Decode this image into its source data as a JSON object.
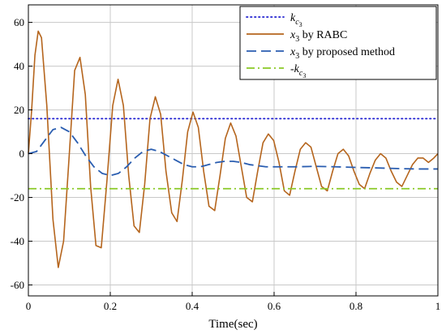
{
  "chart_data": {
    "type": "line",
    "title": "",
    "xlabel": "Time(sec)",
    "ylabel": "",
    "xlim": [
      0,
      1
    ],
    "ylim": [
      -65,
      68
    ],
    "grid": true,
    "legend_position": "top-right",
    "x_ticks": [
      0,
      0.2,
      0.4,
      0.6,
      0.8,
      1
    ],
    "x_tick_labels": [
      "0",
      "0.2",
      "0.4",
      "0.6",
      "0.8",
      "1"
    ],
    "y_ticks": [
      -60,
      -40,
      -20,
      0,
      20,
      40,
      60
    ],
    "y_tick_labels": [
      "-60",
      "-40",
      "-20",
      "0",
      "20",
      "40",
      "60"
    ],
    "series": [
      {
        "name": "k_c3",
        "legend_label": "k",
        "legend_subscript": "c",
        "legend_subsubscript": "3",
        "color": "#2020d0",
        "style": "dotted",
        "x": [
          0,
          1
        ],
        "y": [
          16,
          16
        ]
      },
      {
        "name": "x3 by RABC",
        "legend_label": "x",
        "legend_subscript": "3",
        "legend_suffix": " by RABC",
        "color": "#b5651d",
        "style": "solid",
        "x": [
          0,
          0.008,
          0.016,
          0.024,
          0.032,
          0.045,
          0.06,
          0.073,
          0.086,
          0.1,
          0.113,
          0.126,
          0.139,
          0.152,
          0.165,
          0.178,
          0.192,
          0.206,
          0.219,
          0.232,
          0.245,
          0.258,
          0.271,
          0.284,
          0.297,
          0.31,
          0.323,
          0.336,
          0.35,
          0.363,
          0.376,
          0.389,
          0.402,
          0.415,
          0.428,
          0.441,
          0.455,
          0.468,
          0.481,
          0.494,
          0.507,
          0.52,
          0.533,
          0.547,
          0.56,
          0.573,
          0.586,
          0.599,
          0.612,
          0.625,
          0.638,
          0.651,
          0.664,
          0.677,
          0.69,
          0.703,
          0.716,
          0.73,
          0.743,
          0.756,
          0.769,
          0.782,
          0.795,
          0.808,
          0.821,
          0.834,
          0.847,
          0.86,
          0.873,
          0.886,
          0.899,
          0.912,
          0.925,
          0.938,
          0.951,
          0.964,
          0.977,
          0.99,
          1
        ],
        "y": [
          0,
          20,
          45,
          56,
          53,
          22,
          -30,
          -52,
          -40,
          0,
          38,
          44,
          27,
          -15,
          -42,
          -43,
          -12,
          22,
          34,
          22,
          -10,
          -33,
          -36,
          -14,
          16,
          26,
          18,
          -8,
          -27,
          -31,
          -12,
          10,
          19,
          12,
          -8,
          -24,
          -26,
          -10,
          7,
          14,
          8,
          -6,
          -20,
          -22,
          -8,
          5,
          9,
          6,
          -4,
          -17,
          -19,
          -8,
          2,
          5,
          3,
          -6,
          -15,
          -17,
          -8,
          0,
          2,
          -1,
          -8,
          -14,
          -16,
          -9,
          -3,
          0,
          -2,
          -8,
          -13,
          -15,
          -10,
          -5,
          -2,
          -2,
          -4,
          -2,
          0
        ]
      },
      {
        "name": "x3 by proposed method",
        "legend_label": "x",
        "legend_subscript": "3",
        "legend_suffix": " by proposed method",
        "color": "#2a5db0",
        "style": "dashed",
        "x": [
          0,
          0.02,
          0.04,
          0.06,
          0.08,
          0.1,
          0.12,
          0.14,
          0.16,
          0.18,
          0.2,
          0.22,
          0.24,
          0.26,
          0.28,
          0.3,
          0.32,
          0.34,
          0.36,
          0.38,
          0.4,
          0.42,
          0.44,
          0.46,
          0.48,
          0.5,
          0.52,
          0.54,
          0.56,
          0.58,
          0.6,
          0.65,
          0.7,
          0.75,
          0.8,
          0.85,
          0.9,
          0.95,
          1
        ],
        "y": [
          0,
          1,
          6,
          11,
          12,
          10,
          5,
          -1,
          -6,
          -9,
          -10,
          -9,
          -6,
          -2,
          1,
          2,
          1,
          -1,
          -3,
          -5,
          -6,
          -6,
          -5,
          -4,
          -3.5,
          -3.5,
          -4,
          -5,
          -5.5,
          -6,
          -6,
          -6,
          -5.8,
          -6,
          -6.3,
          -6.5,
          -6.8,
          -7,
          -7
        ]
      },
      {
        "name": "-k_c3",
        "legend_label": "-k",
        "legend_subscript": "c",
        "legend_subsubscript": "3",
        "color": "#8ac926",
        "style": "dashdot",
        "x": [
          0,
          1
        ],
        "y": [
          -16,
          -16
        ]
      }
    ]
  }
}
